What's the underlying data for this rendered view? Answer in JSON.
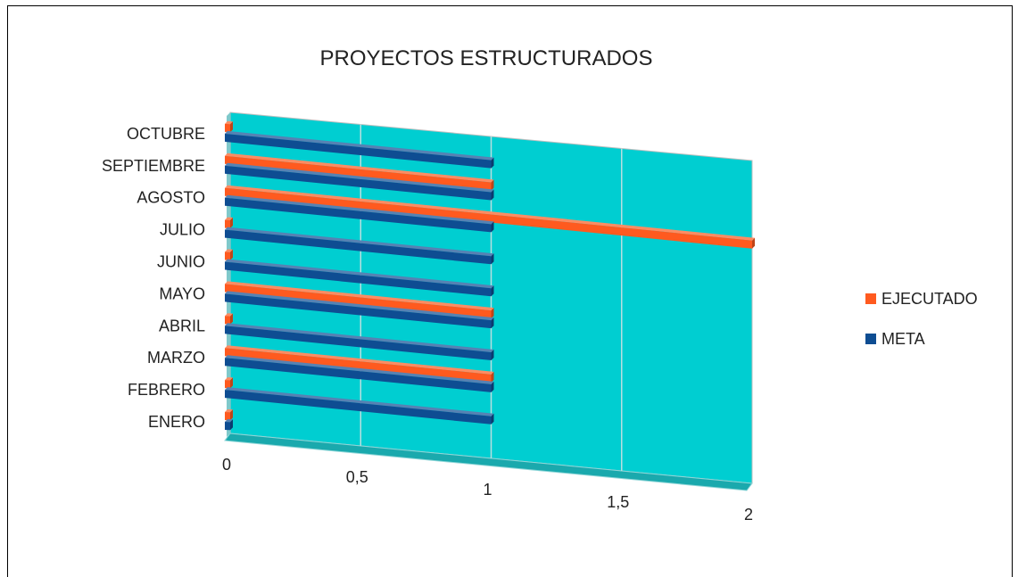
{
  "chart_data": {
    "type": "bar",
    "orientation": "horizontal",
    "title": "PROYECTOS ESTRUCTURADOS",
    "categories": [
      "ENERO",
      "FEBRERO",
      "MARZO",
      "ABRIL",
      "MAYO",
      "JUNIO",
      "JULIO",
      "AGOSTO",
      "SEPTIEMBRE",
      "OCTUBRE"
    ],
    "series": [
      {
        "name": "META",
        "color": "#0E4D92",
        "values": [
          0,
          1,
          1,
          1,
          1,
          1,
          1,
          1,
          1,
          1
        ]
      },
      {
        "name": "EJECUTADO",
        "color": "#FF5A1F",
        "values": [
          0,
          0,
          1,
          0,
          1,
          0,
          0,
          2,
          1,
          0
        ]
      }
    ],
    "xlim": [
      0,
      2
    ],
    "x_ticks": [
      "0",
      "0,5",
      "1",
      "1,5",
      "2"
    ],
    "grid": true,
    "legend_position": "right",
    "plot_background": "#00CED1"
  }
}
